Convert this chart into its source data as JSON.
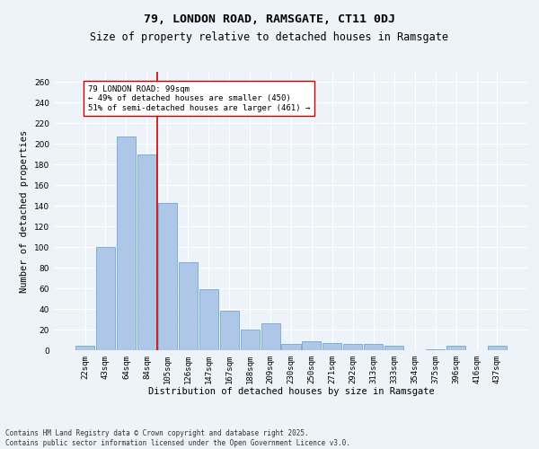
{
  "title_line1": "79, LONDON ROAD, RAMSGATE, CT11 0DJ",
  "title_line2": "Size of property relative to detached houses in Ramsgate",
  "xlabel": "Distribution of detached houses by size in Ramsgate",
  "ylabel": "Number of detached properties",
  "categories": [
    "22sqm",
    "43sqm",
    "64sqm",
    "84sqm",
    "105sqm",
    "126sqm",
    "147sqm",
    "167sqm",
    "188sqm",
    "209sqm",
    "230sqm",
    "250sqm",
    "271sqm",
    "292sqm",
    "313sqm",
    "333sqm",
    "354sqm",
    "375sqm",
    "396sqm",
    "416sqm",
    "437sqm"
  ],
  "values": [
    4,
    100,
    207,
    190,
    143,
    85,
    59,
    38,
    20,
    26,
    6,
    9,
    7,
    6,
    6,
    4,
    0,
    1,
    4,
    0,
    4
  ],
  "bar_color": "#aec6e8",
  "bar_edge_color": "#5a9fd4",
  "vline_x_index": 3.5,
  "vline_color": "#cc0000",
  "annotation_text": "79 LONDON ROAD: 99sqm\n← 49% of detached houses are smaller (450)\n51% of semi-detached houses are larger (461) →",
  "annotation_box_color": "white",
  "annotation_box_edge": "#cc0000",
  "bg_color": "#eef2f9",
  "grid_color": "white",
  "footer_text": "Contains HM Land Registry data © Crown copyright and database right 2025.\nContains public sector information licensed under the Open Government Licence v3.0.",
  "ylim": [
    0,
    270
  ],
  "yticks": [
    0,
    20,
    40,
    60,
    80,
    100,
    120,
    140,
    160,
    180,
    200,
    220,
    240,
    260
  ],
  "title_fontsize": 9.5,
  "subtitle_fontsize": 8.5,
  "tick_fontsize": 6.5,
  "ylabel_fontsize": 7.5,
  "xlabel_fontsize": 7.5,
  "annotation_fontsize": 6.5,
  "footer_fontsize": 5.5
}
